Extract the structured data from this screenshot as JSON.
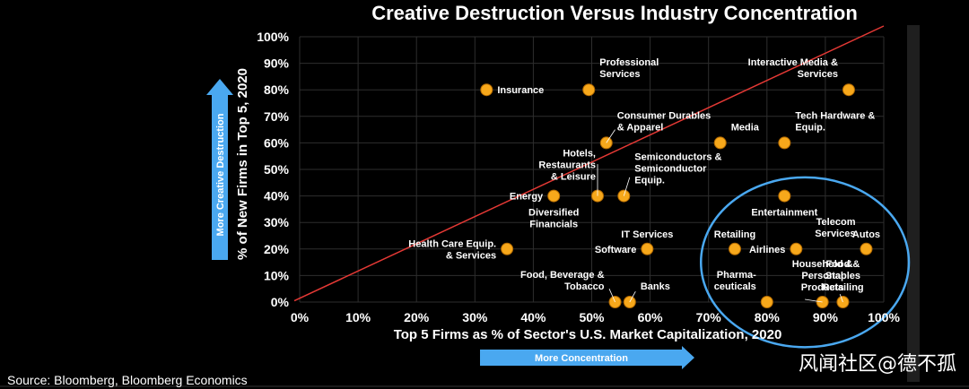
{
  "colors": {
    "background": "#000000",
    "point": "#F7A81B",
    "point_edge": "#B36A00",
    "trend_line": "#E53935",
    "ellipse": "#4AA8F0",
    "arrow": "#4AA8F0",
    "grid": "#2E2E2E",
    "text": "#FFFFFF",
    "scrollbar": "#1F1F1F"
  },
  "chart_data": {
    "type": "scatter",
    "title": "Creative Destruction Versus Industry Concentration",
    "xlabel": "Top 5 Firms as % of Sector's U.S. Market Capitalization, 2020",
    "ylabel": "% of New Firms in Top 5, 2020",
    "xlim": [
      0,
      100
    ],
    "ylim": [
      0,
      100
    ],
    "x_ticks": [
      "0%",
      "10%",
      "20%",
      "30%",
      "40%",
      "50%",
      "60%",
      "70%",
      "80%",
      "90%",
      "100%"
    ],
    "y_ticks": [
      "0%",
      "10%",
      "20%",
      "30%",
      "40%",
      "50%",
      "60%",
      "70%",
      "80%",
      "90%",
      "100%"
    ],
    "grid": true,
    "trend_line": {
      "from": [
        0,
        1.5
      ],
      "to": [
        100,
        100
      ]
    },
    "points": [
      {
        "name": "Insurance",
        "lines": [
          "Insurance"
        ],
        "x": 32,
        "y": 80,
        "label_pos": "right"
      },
      {
        "name": "Professional Services",
        "lines": [
          "Professional",
          "Services"
        ],
        "x": 49.5,
        "y": 80,
        "label_pos": "upper-right"
      },
      {
        "name": "Interactive Media & Services",
        "lines": [
          "Interactive Media &",
          "Services"
        ],
        "x": 94,
        "y": 80,
        "label_pos": "upper-left"
      },
      {
        "name": "Consumer Durables & Apparel",
        "lines": [
          "Consumer Durables",
          "& Apparel"
        ],
        "x": 52.5,
        "y": 60,
        "label_pos": "upper-right"
      },
      {
        "name": "Media",
        "lines": [
          "Media"
        ],
        "x": 72,
        "y": 60,
        "label_pos": "upper-right"
      },
      {
        "name": "Tech Hardware & Equip.",
        "lines": [
          "Tech Hardware &",
          "Equip."
        ],
        "x": 83,
        "y": 60,
        "label_pos": "upper-right"
      },
      {
        "name": "Hotels, Restaurants & Leisure",
        "lines": [
          "Hotels,",
          "Restaurants",
          "& Leisure"
        ],
        "x": 51,
        "y": 40,
        "label_pos": "above-left"
      },
      {
        "name": "Semiconductors & Semiconductor Equip.",
        "lines": [
          "Semiconductors &",
          "Semiconductor",
          "Equip."
        ],
        "x": 55.5,
        "y": 40,
        "label_pos": "upper-right"
      },
      {
        "name": "Energy",
        "lines": [
          "Energy"
        ],
        "x": 43.5,
        "y": 40,
        "label_pos": "left"
      },
      {
        "name": "Diversified Financials",
        "lines": [
          "Diversified",
          "Financials"
        ],
        "x": 43.5,
        "y": 40,
        "label_pos": "below"
      },
      {
        "name": "Entertainment",
        "lines": [
          "Entertainment"
        ],
        "x": 83,
        "y": 40,
        "label_pos": "below"
      },
      {
        "name": "Health Care Equip. & Services",
        "lines": [
          "Health Care Equip.",
          "& Services"
        ],
        "x": 35.5,
        "y": 20,
        "label_pos": "left"
      },
      {
        "name": "IT Services",
        "lines": [
          "IT Services"
        ],
        "x": 59.5,
        "y": 20,
        "label_pos": "upper"
      },
      {
        "name": "Software",
        "lines": [
          "Software"
        ],
        "x": 59.5,
        "y": 20,
        "label_pos": "left"
      },
      {
        "name": "Retailing",
        "lines": [
          "Retailing"
        ],
        "x": 74.5,
        "y": 20,
        "label_pos": "upper"
      },
      {
        "name": "Airlines",
        "lines": [
          "Airlines"
        ],
        "x": 85,
        "y": 20,
        "label_pos": "left"
      },
      {
        "name": "Telecom Services",
        "lines": [
          "Telecom",
          "Services"
        ],
        "x": 97,
        "y": 20,
        "label_pos": "upper-left"
      },
      {
        "name": "Autos",
        "lines": [
          "Autos"
        ],
        "x": 97,
        "y": 20,
        "label_pos": "upper"
      },
      {
        "name": "Food, Beverage & Tobacco",
        "lines": [
          "Food, Beverage &",
          "Tobacco"
        ],
        "x": 54,
        "y": 0,
        "label_pos": "upper-left"
      },
      {
        "name": "Banks",
        "lines": [
          "Banks"
        ],
        "x": 56.5,
        "y": 0,
        "label_pos": "upper-right"
      },
      {
        "name": "Pharmaceuticals",
        "lines": [
          "Pharma-",
          "ceuticals"
        ],
        "x": 80,
        "y": 0,
        "label_pos": "upper-left"
      },
      {
        "name": "Household & Personal Products",
        "lines": [
          "Household &",
          "Personal",
          "Products"
        ],
        "x": 89.5,
        "y": 0,
        "label_pos": "upper"
      },
      {
        "name": "Food & Staples Retailing",
        "lines": [
          "Food &",
          "Staples",
          "Retailing"
        ],
        "x": 93,
        "y": 0,
        "label_pos": "upper"
      }
    ],
    "highlight_ellipse": {
      "cx": 86.5,
      "cy": 15,
      "rx": 17.8,
      "ry": 32
    }
  },
  "annotations": {
    "vertical_arrow": "More Creative Destruction",
    "horizontal_arrow": "More Concentration"
  },
  "source": "Source: Bloomberg, Bloomberg Economics",
  "watermark": "风闻社区@德不孤"
}
